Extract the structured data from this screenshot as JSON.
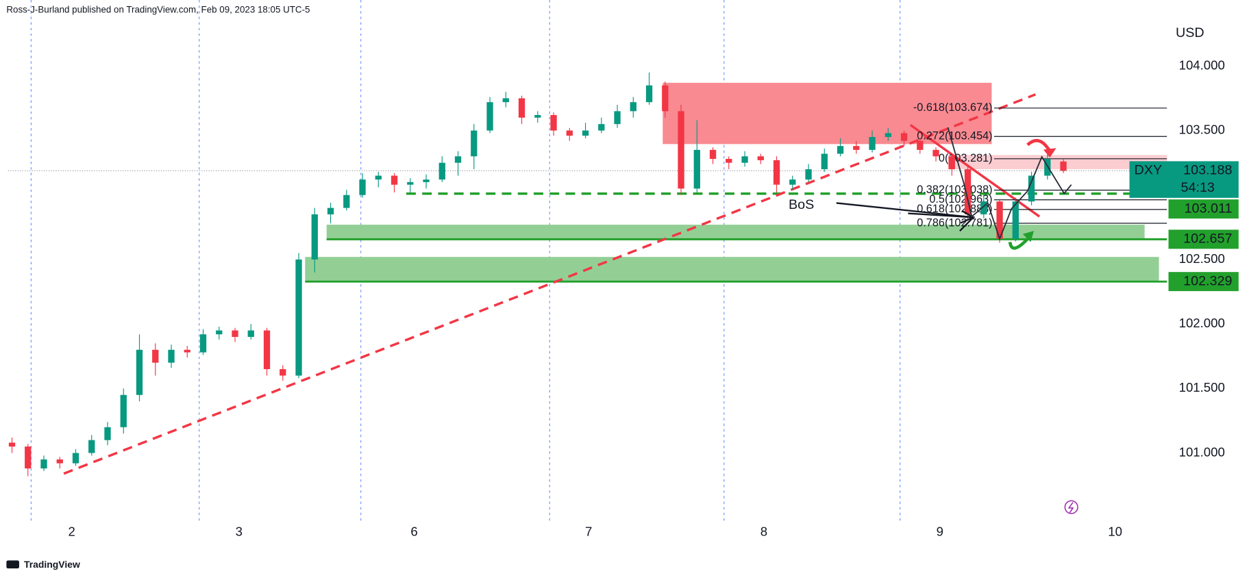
{
  "chart_data": {
    "type": "candlestick",
    "header": "Ross-J-Burland published on TradingView.com, Feb 09, 2023 18:05 UTC-5",
    "currency": "USD",
    "footer": "TradingView",
    "symbol": "DXY",
    "last_price": 103.188,
    "countdown": "54:13",
    "up_color": "#089981",
    "down_color": "#f23645",
    "xlim": [
      -0.25,
      72.5
    ],
    "ylim": [
      100.469,
      104.512
    ],
    "yticks": [
      {
        "value": 104,
        "label": "104.000"
      },
      {
        "value": 103.5,
        "label": "103.500"
      },
      {
        "value": 102.5,
        "label": "102.500"
      },
      {
        "value": 102,
        "label": "102.000"
      },
      {
        "value": 101.5,
        "label": "101.500"
      },
      {
        "value": 101,
        "label": "101.000"
      }
    ],
    "xticks": [
      {
        "value": 3.75,
        "label": "2"
      },
      {
        "value": 14.25,
        "label": "3"
      },
      {
        "value": 25.25,
        "label": "6"
      },
      {
        "value": 36.2,
        "label": "7"
      },
      {
        "value": 47.2,
        "label": "8"
      },
      {
        "value": 58.25,
        "label": "9"
      },
      {
        "value": 69.25,
        "label": "10"
      }
    ],
    "session_breaks": [
      1.2,
      11.75,
      21.9,
      33.75,
      44.7,
      55.75
    ],
    "candles": [
      [
        101.08,
        101.12,
        101.0,
        101.05
      ],
      [
        101.05,
        101.07,
        100.82,
        100.88
      ],
      [
        100.88,
        100.98,
        100.86,
        100.95
      ],
      [
        100.95,
        100.97,
        100.88,
        100.92
      ],
      [
        100.92,
        101.03,
        100.9,
        101.0
      ],
      [
        101.0,
        101.14,
        100.98,
        101.1
      ],
      [
        101.1,
        101.24,
        101.06,
        101.2
      ],
      [
        101.2,
        101.5,
        101.15,
        101.45
      ],
      [
        101.45,
        101.92,
        101.4,
        101.8
      ],
      [
        101.8,
        101.85,
        101.6,
        101.7
      ],
      [
        101.7,
        101.84,
        101.66,
        101.8
      ],
      [
        101.8,
        101.83,
        101.74,
        101.78
      ],
      [
        101.78,
        101.96,
        101.76,
        101.92
      ],
      [
        101.92,
        101.98,
        101.88,
        101.95
      ],
      [
        101.95,
        101.97,
        101.86,
        101.9
      ],
      [
        101.9,
        102.0,
        101.88,
        101.95
      ],
      [
        101.95,
        101.97,
        101.6,
        101.65
      ],
      [
        101.65,
        101.68,
        101.56,
        101.6
      ],
      [
        101.6,
        102.55,
        101.58,
        102.5
      ],
      [
        102.5,
        102.9,
        102.4,
        102.85
      ],
      [
        102.85,
        102.94,
        102.78,
        102.9
      ],
      [
        102.9,
        103.04,
        102.88,
        103.0
      ],
      [
        103.0,
        103.17,
        102.98,
        103.12
      ],
      [
        103.12,
        103.18,
        103.06,
        103.15
      ],
      [
        103.15,
        103.17,
        103.02,
        103.08
      ],
      [
        103.08,
        103.13,
        103.02,
        103.1
      ],
      [
        103.1,
        103.16,
        103.05,
        103.12
      ],
      [
        103.12,
        103.3,
        103.1,
        103.25
      ],
      [
        103.25,
        103.34,
        103.15,
        103.3
      ],
      [
        103.3,
        103.55,
        103.2,
        103.5
      ],
      [
        103.5,
        103.76,
        103.48,
        103.72
      ],
      [
        103.72,
        103.8,
        103.68,
        103.75
      ],
      [
        103.75,
        103.77,
        103.55,
        103.6
      ],
      [
        103.6,
        103.65,
        103.56,
        103.62
      ],
      [
        103.62,
        103.64,
        103.46,
        103.5
      ],
      [
        103.5,
        103.52,
        103.42,
        103.46
      ],
      [
        103.46,
        103.56,
        103.44,
        103.5
      ],
      [
        103.5,
        103.6,
        103.48,
        103.55
      ],
      [
        103.55,
        103.7,
        103.52,
        103.65
      ],
      [
        103.65,
        103.76,
        103.6,
        103.72
      ],
      [
        103.72,
        103.95,
        103.7,
        103.85
      ],
      [
        103.85,
        103.88,
        103.6,
        103.65
      ],
      [
        103.65,
        103.7,
        103.0,
        103.05
      ],
      [
        103.05,
        103.58,
        103.02,
        103.35
      ],
      [
        103.35,
        103.37,
        103.24,
        103.28
      ],
      [
        103.28,
        103.3,
        103.2,
        103.25
      ],
      [
        103.25,
        103.34,
        103.22,
        103.3
      ],
      [
        103.3,
        103.32,
        103.24,
        103.27
      ],
      [
        103.27,
        103.3,
        103.02,
        103.08
      ],
      [
        103.08,
        103.15,
        103.04,
        103.12
      ],
      [
        103.12,
        103.24,
        103.1,
        103.2
      ],
      [
        103.2,
        103.36,
        103.18,
        103.32
      ],
      [
        103.32,
        103.44,
        103.3,
        103.38
      ],
      [
        103.38,
        103.42,
        103.32,
        103.35
      ],
      [
        103.35,
        103.5,
        103.33,
        103.45
      ],
      [
        103.45,
        103.52,
        103.42,
        103.48
      ],
      [
        103.48,
        103.5,
        103.38,
        103.42
      ],
      [
        103.42,
        103.44,
        103.32,
        103.35
      ],
      [
        103.35,
        103.37,
        103.26,
        103.3
      ],
      [
        103.3,
        103.32,
        103.15,
        103.2
      ],
      [
        103.2,
        103.22,
        102.8,
        102.85
      ],
      [
        102.85,
        103.0,
        102.82,
        102.95
      ],
      [
        102.95,
        102.97,
        102.63,
        102.66
      ],
      [
        102.66,
        102.98,
        102.64,
        102.95
      ],
      [
        102.95,
        103.18,
        102.92,
        103.15
      ],
      [
        103.15,
        103.32,
        103.12,
        103.28
      ],
      [
        103.26,
        103.28,
        103.17,
        103.188
      ]
    ],
    "zones": [
      {
        "color": "#f98a91",
        "x": [
          40.85,
          61.5
        ],
        "price": [
          103.87,
          103.395
        ]
      },
      {
        "color": "#fbcdd1",
        "x": [
          58.75,
          72.5
        ],
        "price": [
          103.31,
          103.2
        ]
      },
      {
        "color": "#93cf95",
        "x": [
          19.75,
          71.1
        ],
        "price": [
          102.77,
          102.66
        ]
      },
      {
        "color": "#93cf95",
        "x": [
          18.4,
          72
        ],
        "price": [
          102.52,
          102.33
        ]
      }
    ],
    "level_color": "#22a02c",
    "levels": [
      {
        "value": 103.011,
        "from": 24.75,
        "dashed": true
      },
      {
        "value": 102.657,
        "from": 19.75,
        "dashed": false
      },
      {
        "value": 102.329,
        "from": 18.4,
        "dashed": false
      }
    ],
    "fib": [
      {
        "value": 103.674,
        "label": "-0.618(103.674)"
      },
      {
        "value": 103.454,
        "label": "0.272(103.454)"
      },
      {
        "value": 103.281,
        "label": "0(103.281)"
      },
      {
        "value": 103.038,
        "label": "0.382(103.038)"
      },
      {
        "value": 102.963,
        "label": "0.5(102.963)"
      },
      {
        "value": 102.888,
        "label": "0.618(102.888)"
      },
      {
        "value": 102.781,
        "label": "0.786(102.781)"
      }
    ],
    "trendlines": [
      {
        "color": "#f23645",
        "dashed": true,
        "points": [
          [
            3.25,
            100.84
          ],
          [
            64.25,
            103.78
          ]
        ]
      },
      {
        "color": "#f23645",
        "dashed": false,
        "points": [
          [
            56.4,
            103.543
          ],
          [
            64.5,
            102.833
          ]
        ]
      }
    ],
    "annotation": "BoS"
  }
}
